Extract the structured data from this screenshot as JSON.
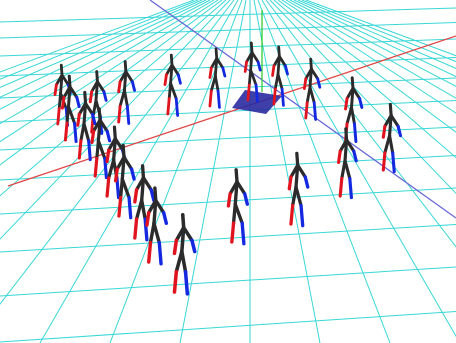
{
  "scene": {
    "background": "#ffffff",
    "grid_color": "#3ad7d7",
    "axis_x_color": "#e04848",
    "axis_y_color": "#6a6ad8",
    "axis_z_color": "#33cc33",
    "origin_marker_color": "#2a2aa0",
    "skeleton_body_color": "#2b2b2b",
    "skeleton_left_color": "#e0141e",
    "skeleton_right_color": "#1428e0",
    "figure_count": 21,
    "formation": "circle-with-curved-line"
  }
}
